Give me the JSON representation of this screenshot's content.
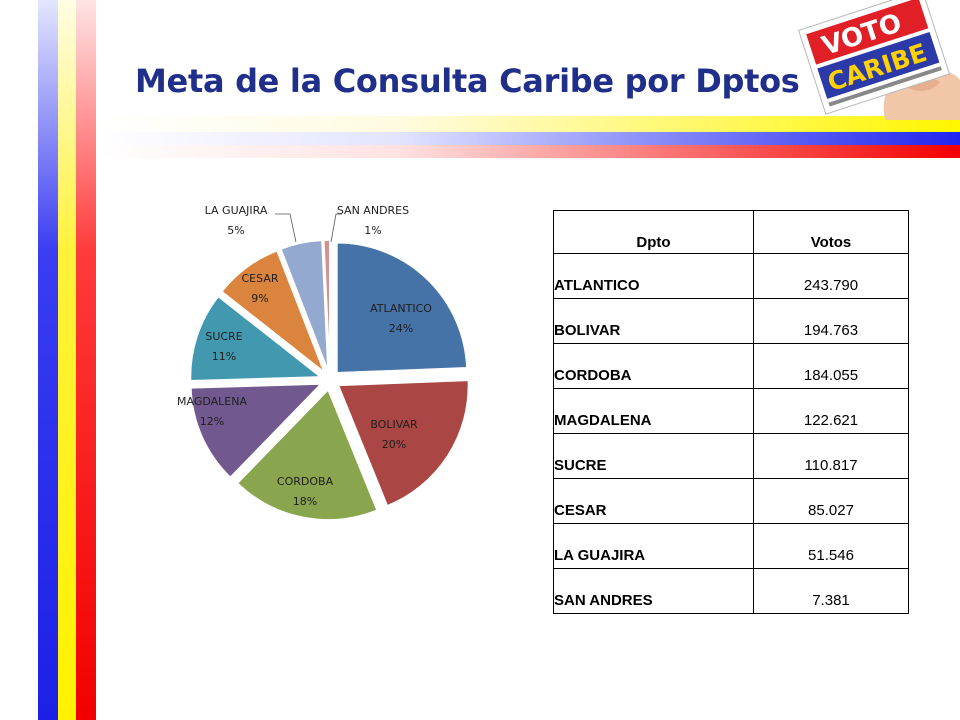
{
  "title": "Meta de la Consulta Caribe por Dptos",
  "logo": {
    "icon": "voto-caribe-logo",
    "line1": "VOTO",
    "line2": "CARIBE"
  },
  "table": {
    "headers": [
      "Dpto",
      "Votos"
    ],
    "rows": [
      {
        "dpto": "ATLANTICO",
        "votos": "243.790"
      },
      {
        "dpto": "BOLIVAR",
        "votos": "194.763"
      },
      {
        "dpto": "CORDOBA",
        "votos": "184.055"
      },
      {
        "dpto": "MAGDALENA",
        "votos": "122.621"
      },
      {
        "dpto": "SUCRE",
        "votos": "110.817"
      },
      {
        "dpto": "CESAR",
        "votos": "85.027"
      },
      {
        "dpto": "LA GUAJIRA",
        "votos": "51.546"
      },
      {
        "dpto": "SAN ANDRES",
        "votos": "7.381"
      }
    ]
  },
  "chart_data": {
    "type": "pie",
    "start_angle_deg": 0,
    "direction": "clockwise",
    "exploded": true,
    "slices": [
      {
        "label": "ATLANTICO",
        "percent_label": "24%",
        "value": 243790,
        "color": "#4572a7"
      },
      {
        "label": "BOLIVAR",
        "percent_label": "20%",
        "value": 194763,
        "color": "#aa4643"
      },
      {
        "label": "CORDOBA",
        "percent_label": "18%",
        "value": 184055,
        "color": "#89a54e"
      },
      {
        "label": "MAGDALENA",
        "percent_label": "12%",
        "value": 122621,
        "color": "#71588f"
      },
      {
        "label": "SUCRE",
        "percent_label": "11%",
        "value": 110817,
        "color": "#4198af"
      },
      {
        "label": "CESAR",
        "percent_label": "9%",
        "value": 85027,
        "color": "#db843d"
      },
      {
        "label": "LA GUAJIRA",
        "percent_label": "5%",
        "value": 51546,
        "color": "#93a9cf"
      },
      {
        "label": "SAN ANDRES",
        "percent_label": "1%",
        "value": 7381,
        "color": "#d19392"
      }
    ]
  }
}
